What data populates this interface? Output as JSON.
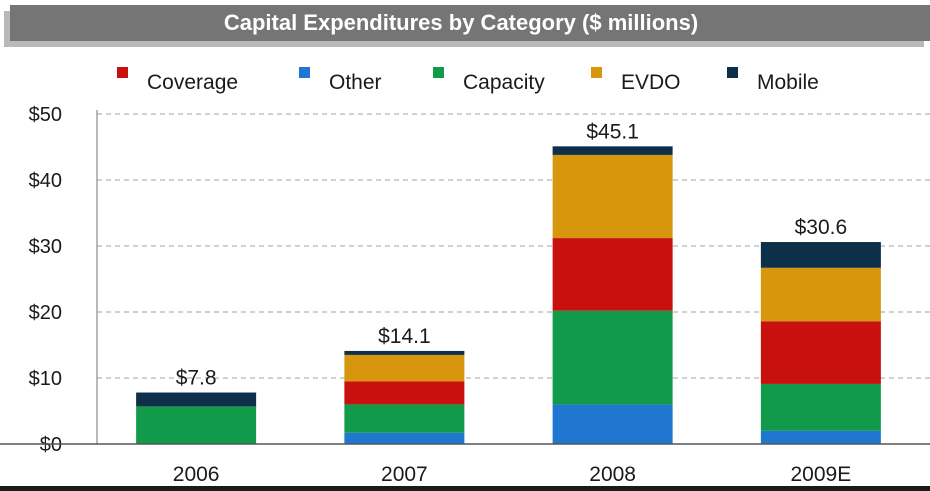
{
  "chart_data": {
    "type": "bar",
    "stacked": true,
    "title": "Capital Expenditures by Category ($ millions)",
    "categories": [
      "2006",
      "2007",
      "2008",
      "2009E"
    ],
    "totals": [
      "$7.8",
      "$14.1",
      "$45.1",
      "$30.6"
    ],
    "y_ticks": [
      "$0",
      "$10",
      "$20",
      "$30",
      "$40",
      "$50"
    ],
    "ylim": [
      0,
      50
    ],
    "grid": true,
    "legend_position": "top",
    "legend": [
      "Coverage",
      "Other",
      "Capacity",
      "EVDO",
      "Mobile"
    ],
    "stack_order": [
      "Other",
      "Capacity",
      "Coverage",
      "EVDO",
      "Mobile"
    ],
    "series": [
      {
        "name": "Coverage",
        "color": "#c8100f",
        "values": [
          0,
          3.5,
          11.0,
          9.5
        ]
      },
      {
        "name": "Other",
        "color": "#1f77d0",
        "values": [
          0,
          1.7,
          6.0,
          2.0
        ]
      },
      {
        "name": "Capacity",
        "color": "#109a4a",
        "values": [
          5.7,
          4.3,
          14.2,
          7.1
        ]
      },
      {
        "name": "EVDO",
        "color": "#d8960f",
        "values": [
          0,
          4.0,
          12.6,
          8.1
        ]
      },
      {
        "name": "Mobile",
        "color": "#0e2f4a",
        "values": [
          2.1,
          0.6,
          1.3,
          3.9
        ]
      }
    ]
  }
}
